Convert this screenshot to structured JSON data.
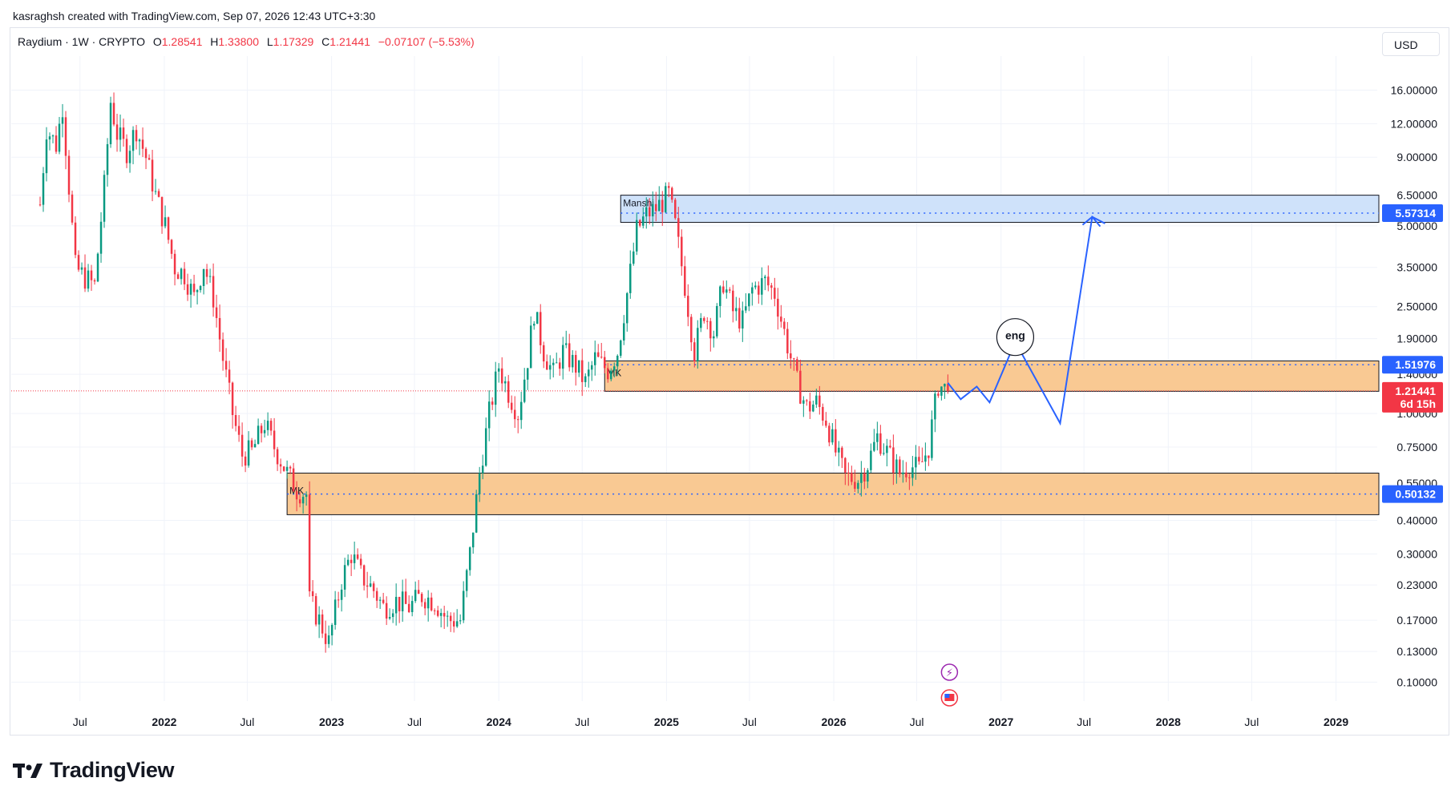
{
  "header": {
    "author_line": "kasraghsh created with TradingView.com, Sep 07, 2026 12:43 UTC+3:30"
  },
  "legend": {
    "symbol": "Raydium · 1W · CRYPTO",
    "o_label": "O",
    "o_value": "1.28541",
    "h_label": "H",
    "h_value": "1.33800",
    "l_label": "L",
    "l_value": "1.17329",
    "c_label": "C",
    "c_value": "1.21441",
    "change": "−0.07107 (−5.53%)"
  },
  "currency_button": "USD",
  "brand": {
    "name": "TradingView"
  },
  "colors": {
    "up": "#089981",
    "down": "#f23645",
    "zone_orange": "#f9c993",
    "zone_blue": "#cfe2fa",
    "accent_blue": "#2962ff",
    "price_red": "#f23645"
  },
  "chart_data": {
    "type": "candlestick",
    "scale": "log",
    "ylim": [
      0.085,
      20
    ],
    "xlim": [
      "2021-02-01",
      "2029-04-01"
    ],
    "price_ticks": [
      "16.00000",
      "12.00000",
      "9.00000",
      "6.50000",
      "5.00000",
      "3.50000",
      "2.50000",
      "1.90000",
      "1.40000",
      "1.00000",
      "0.75000",
      "0.55000",
      "0.40000",
      "0.30000",
      "0.23000",
      "0.17000",
      "0.13000",
      "0.10000"
    ],
    "price_tick_values": [
      16,
      12,
      9,
      6.5,
      5,
      3.5,
      2.5,
      1.9,
      1.4,
      1.0,
      0.75,
      0.55,
      0.4,
      0.3,
      0.23,
      0.17,
      0.13,
      0.1
    ],
    "time_ticks": [
      {
        "label": "Jul",
        "date": "2021-07-01",
        "year": false
      },
      {
        "label": "2022",
        "date": "2022-01-01",
        "year": true
      },
      {
        "label": "Jul",
        "date": "2022-07-01",
        "year": false
      },
      {
        "label": "2023",
        "date": "2023-01-01",
        "year": true
      },
      {
        "label": "Jul",
        "date": "2023-07-01",
        "year": false
      },
      {
        "label": "2024",
        "date": "2024-01-01",
        "year": true
      },
      {
        "label": "Jul",
        "date": "2024-07-01",
        "year": false
      },
      {
        "label": "2025",
        "date": "2025-01-01",
        "year": true
      },
      {
        "label": "Jul",
        "date": "2025-07-01",
        "year": false
      },
      {
        "label": "2026",
        "date": "2026-01-01",
        "year": true
      },
      {
        "label": "Jul",
        "date": "2026-07-01",
        "year": false
      },
      {
        "label": "2027",
        "date": "2027-01-01",
        "year": true
      },
      {
        "label": "Jul",
        "date": "2027-07-01",
        "year": false
      },
      {
        "label": "2028",
        "date": "2028-01-01",
        "year": true
      },
      {
        "label": "Jul",
        "date": "2028-07-01",
        "year": false
      },
      {
        "label": "2029",
        "date": "2029-01-01",
        "year": true
      }
    ],
    "price_anchors": [
      [
        "2021-04-05",
        6.0
      ],
      [
        "2021-04-19",
        11.5
      ],
      [
        "2021-05-10",
        10.0
      ],
      [
        "2021-05-24",
        14.0
      ],
      [
        "2021-06-07",
        7.0
      ],
      [
        "2021-06-21",
        3.5
      ],
      [
        "2021-07-12",
        3.2
      ],
      [
        "2021-08-02",
        3.0
      ],
      [
        "2021-08-23",
        7.0
      ],
      [
        "2021-09-06",
        14.5
      ],
      [
        "2021-09-20",
        11.0
      ],
      [
        "2021-10-11",
        9.5
      ],
      [
        "2021-11-01",
        11.5
      ],
      [
        "2021-11-22",
        9.0
      ],
      [
        "2021-12-13",
        6.5
      ],
      [
        "2022-01-03",
        5.0
      ],
      [
        "2022-01-24",
        3.5
      ],
      [
        "2022-02-14",
        3.3
      ],
      [
        "2022-03-07",
        2.7
      ],
      [
        "2022-03-28",
        3.6
      ],
      [
        "2022-04-18",
        2.7
      ],
      [
        "2022-05-09",
        1.6
      ],
      [
        "2022-05-30",
        1.0
      ],
      [
        "2022-06-20",
        0.7
      ],
      [
        "2022-07-11",
        0.72
      ],
      [
        "2022-08-08",
        0.92
      ],
      [
        "2022-08-29",
        0.75
      ],
      [
        "2022-09-26",
        0.6
      ],
      [
        "2022-10-17",
        0.52
      ],
      [
        "2022-11-07",
        0.5
      ],
      [
        "2022-11-14",
        0.2
      ],
      [
        "2022-12-05",
        0.17
      ],
      [
        "2022-12-26",
        0.14
      ],
      [
        "2023-01-23",
        0.24
      ],
      [
        "2023-02-13",
        0.3
      ],
      [
        "2023-03-06",
        0.25
      ],
      [
        "2023-04-03",
        0.22
      ],
      [
        "2023-04-24",
        0.19
      ],
      [
        "2023-05-22",
        0.2
      ],
      [
        "2023-06-19",
        0.19
      ],
      [
        "2023-07-17",
        0.21
      ],
      [
        "2023-08-14",
        0.2
      ],
      [
        "2023-09-11",
        0.17
      ],
      [
        "2023-10-09",
        0.17
      ],
      [
        "2023-10-30",
        0.3
      ],
      [
        "2023-11-20",
        0.6
      ],
      [
        "2023-12-11",
        1.0
      ],
      [
        "2024-01-01",
        1.5
      ],
      [
        "2024-01-22",
        1.2
      ],
      [
        "2024-02-12",
        1.0
      ],
      [
        "2024-03-04",
        1.6
      ],
      [
        "2024-03-18",
        2.4
      ],
      [
        "2024-04-08",
        1.7
      ],
      [
        "2024-04-29",
        1.4
      ],
      [
        "2024-05-20",
        1.7
      ],
      [
        "2024-06-17",
        1.5
      ],
      [
        "2024-07-08",
        1.3
      ],
      [
        "2024-07-29",
        1.6
      ],
      [
        "2024-08-26",
        1.45
      ],
      [
        "2024-09-16",
        1.7
      ],
      [
        "2024-10-07",
        2.8
      ],
      [
        "2024-10-28",
        4.8
      ],
      [
        "2024-11-18",
        5.5
      ],
      [
        "2024-12-09",
        5.8
      ],
      [
        "2025-01-06",
        6.5
      ],
      [
        "2025-01-20",
        5.0
      ],
      [
        "2025-02-10",
        3.0
      ],
      [
        "2025-03-03",
        1.7
      ],
      [
        "2025-03-24",
        2.4
      ],
      [
        "2025-04-14",
        2.0
      ],
      [
        "2025-05-05",
        3.1
      ],
      [
        "2025-05-26",
        2.4
      ],
      [
        "2025-06-16",
        2.2
      ],
      [
        "2025-07-07",
        2.9
      ],
      [
        "2025-08-04",
        3.1
      ],
      [
        "2025-08-25",
        2.8
      ],
      [
        "2025-09-22",
        1.8
      ],
      [
        "2025-10-13",
        1.3
      ],
      [
        "2025-11-03",
        1.05
      ],
      [
        "2025-11-24",
        1.1
      ],
      [
        "2025-12-15",
        0.95
      ],
      [
        "2026-01-05",
        0.72
      ],
      [
        "2026-01-26",
        0.58
      ],
      [
        "2026-02-23",
        0.57
      ],
      [
        "2026-03-16",
        0.65
      ],
      [
        "2026-04-06",
        0.82
      ],
      [
        "2026-04-27",
        0.72
      ],
      [
        "2026-05-25",
        0.6
      ],
      [
        "2026-06-15",
        0.64
      ],
      [
        "2026-07-06",
        0.62
      ],
      [
        "2026-07-27",
        0.75
      ],
      [
        "2026-08-17",
        1.28
      ],
      [
        "2026-09-07",
        1.21441
      ]
    ],
    "zones": [
      {
        "label": "Manshi",
        "x0": "2024-09-23",
        "top": 6.5,
        "bottom": 5.15,
        "line": 5.57314,
        "color": "blue"
      },
      {
        "label": "MK",
        "x0": "2024-08-19",
        "top": 1.57,
        "bottom": 1.21,
        "line": 1.51976,
        "color": "orange"
      },
      {
        "label": "MK",
        "x0": "2022-09-26",
        "top": 0.6,
        "bottom": 0.42,
        "line": 0.50132,
        "color": "orange"
      }
    ],
    "projection": [
      [
        "2026-09-07",
        1.3
      ],
      [
        "2026-10-05",
        1.13
      ],
      [
        "2026-11-09",
        1.26
      ],
      [
        "2026-12-07",
        1.1
      ],
      [
        "2027-02-01",
        1.85
      ],
      [
        "2027-05-10",
        0.92
      ],
      [
        "2027-07-19",
        5.4
      ],
      [
        "2027-08-16",
        5.1
      ]
    ],
    "annotation_circle": {
      "label": "eng",
      "date": "2027-01-04",
      "price": 1.9
    },
    "price_tags": [
      {
        "label": "5.57314",
        "price": 5.57314,
        "color": "#2962ff"
      },
      {
        "label": "1.51976",
        "price": 1.51976,
        "color": "#2962ff"
      },
      {
        "label": "1.21441",
        "sub": "6d 15h",
        "price": 1.21441,
        "color": "#f23645"
      },
      {
        "label": "0.50132",
        "price": 0.50132,
        "color": "#2962ff"
      }
    ]
  }
}
